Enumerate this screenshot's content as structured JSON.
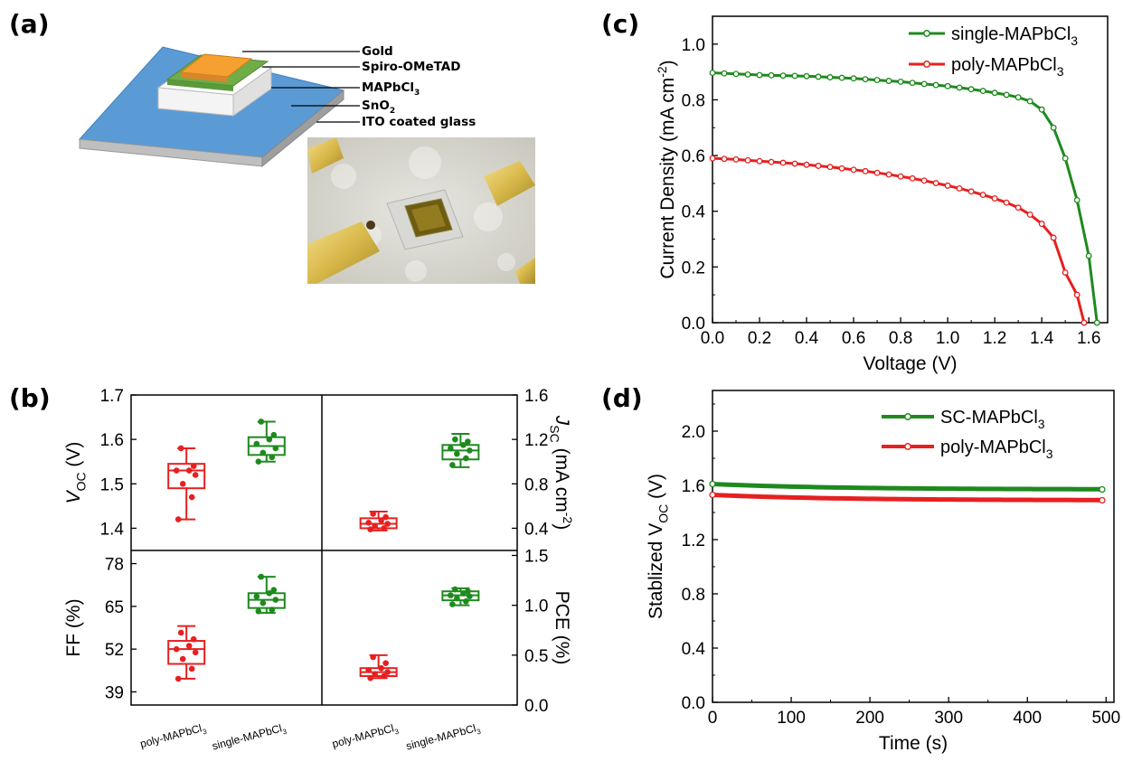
{
  "panels": {
    "a": "(a)",
    "b": "(b)",
    "c": "(c)",
    "d": "(d)"
  },
  "schematic": {
    "layers": [
      {
        "base": "Gold",
        "sub": ""
      },
      {
        "base": "Spiro-OMeTAD",
        "sub": ""
      },
      {
        "base": "MAPbCl",
        "sub": "3"
      },
      {
        "base": "SnO",
        "sub": "2"
      },
      {
        "base": "ITO coated glass",
        "sub": ""
      }
    ],
    "colors": {
      "glass": "#5b9bd5",
      "ito": "#bfbfbf",
      "sno2": "#ffffff",
      "perovskite": "#ffffff",
      "spiro": "#70ad47",
      "gold": "#ed7d31"
    }
  },
  "photo": {
    "description_icon": "device-photo"
  },
  "chart_data": [
    {
      "id": "c",
      "type": "line",
      "xlabel": "Voltage (V)",
      "ylabel": {
        "base": "Current Density (mA cm",
        "sup": "-2",
        "end": ")"
      },
      "xlim": [
        0,
        1.68
      ],
      "ylim": [
        0,
        1.1
      ],
      "xticks": [
        "0.0",
        "0.2",
        "0.4",
        "0.6",
        "0.8",
        "1.0",
        "1.2",
        "1.4",
        "1.6"
      ],
      "yticks": [
        "0.0",
        "0.2",
        "0.4",
        "0.6",
        "0.8",
        "1.0"
      ],
      "legend_position": "top-right",
      "series": [
        {
          "name": {
            "base": "single-MAPbCl",
            "sub": "3"
          },
          "color": "#1e8a1e",
          "x": [
            0,
            0.05,
            0.1,
            0.15,
            0.2,
            0.25,
            0.3,
            0.35,
            0.4,
            0.45,
            0.5,
            0.55,
            0.6,
            0.65,
            0.7,
            0.75,
            0.8,
            0.85,
            0.9,
            0.95,
            1.0,
            1.05,
            1.1,
            1.15,
            1.2,
            1.25,
            1.3,
            1.35,
            1.4,
            1.45,
            1.5,
            1.55,
            1.6,
            1.635
          ],
          "y": [
            0.897,
            0.895,
            0.893,
            0.891,
            0.889,
            0.888,
            0.887,
            0.886,
            0.885,
            0.883,
            0.881,
            0.879,
            0.877,
            0.874,
            0.871,
            0.868,
            0.865,
            0.861,
            0.857,
            0.853,
            0.849,
            0.844,
            0.838,
            0.832,
            0.825,
            0.818,
            0.809,
            0.795,
            0.765,
            0.7,
            0.59,
            0.44,
            0.24,
            0
          ]
        },
        {
          "name": {
            "base": "poly-MAPbCl",
            "sub": "3"
          },
          "color": "#e62020",
          "x": [
            0,
            0.05,
            0.1,
            0.15,
            0.2,
            0.25,
            0.3,
            0.35,
            0.4,
            0.45,
            0.5,
            0.55,
            0.6,
            0.65,
            0.7,
            0.75,
            0.8,
            0.85,
            0.9,
            0.95,
            1.0,
            1.05,
            1.1,
            1.15,
            1.2,
            1.25,
            1.3,
            1.35,
            1.4,
            1.45,
            1.5,
            1.55,
            1.58
          ],
          "y": [
            0.59,
            0.588,
            0.586,
            0.583,
            0.58,
            0.577,
            0.574,
            0.571,
            0.567,
            0.563,
            0.559,
            0.554,
            0.549,
            0.544,
            0.538,
            0.532,
            0.525,
            0.518,
            0.51,
            0.501,
            0.492,
            0.482,
            0.471,
            0.459,
            0.446,
            0.431,
            0.413,
            0.388,
            0.355,
            0.305,
            0.18,
            0.1,
            0
          ]
        }
      ]
    },
    {
      "id": "d",
      "type": "line",
      "xlabel": "Time (s)",
      "ylabel": {
        "base": "Stablized V",
        "sub": "OC",
        "end": " (V)"
      },
      "xlim": [
        0,
        510
      ],
      "ylim": [
        0,
        2.3
      ],
      "xticks": [
        "0",
        "100",
        "200",
        "300",
        "400",
        "500"
      ],
      "yticks": [
        "0.0",
        "0.4",
        "0.8",
        "1.2",
        "1.6",
        "2.0"
      ],
      "legend_position": "top-right",
      "series": [
        {
          "name": {
            "base": "SC-MAPbCl",
            "sub": "3"
          },
          "color": "#1e8a1e",
          "start": 1.61,
          "end": 1.57,
          "x_end": 495
        },
        {
          "name": {
            "base": "poly-MAPbCl",
            "sub": "3"
          },
          "color": "#e62020",
          "start": 1.53,
          "end": 1.49,
          "x_end": 495
        }
      ]
    },
    {
      "id": "b",
      "type": "box",
      "categories": [
        {
          "base": "poly-MAPbCl",
          "sub": "3"
        },
        {
          "base": "single-MAPbCl",
          "sub": "3"
        },
        {
          "base": "poly-MAPbCl",
          "sub": "3"
        },
        {
          "base": "single-MAPbCl",
          "sub": "3"
        }
      ],
      "colors": {
        "poly": "#e62020",
        "single": "#1e8a1e"
      },
      "subplots": [
        {
          "id": "voc",
          "ylabel": {
            "base": "V",
            "sub": "OC",
            "end": " (V)"
          },
          "axis": "left",
          "ylim": [
            1.35,
            1.7
          ],
          "yticks": [
            "1.4",
            "1.5",
            "1.6",
            "1.7"
          ],
          "boxes": [
            {
              "group": "poly",
              "min": 1.42,
              "q1": 1.49,
              "median": 1.53,
              "q3": 1.545,
              "max": 1.58,
              "points": [
                1.42,
                1.47,
                1.5,
                1.52,
                1.53,
                1.53,
                1.54,
                1.58
              ]
            },
            {
              "group": "single",
              "min": 1.55,
              "q1": 1.565,
              "median": 1.585,
              "q3": 1.605,
              "max": 1.64,
              "points": [
                1.55,
                1.56,
                1.57,
                1.58,
                1.59,
                1.6,
                1.61,
                1.64
              ]
            }
          ]
        },
        {
          "id": "jsc",
          "ylabel": {
            "base": "J",
            "sub": "SC",
            "mid": " (mA cm",
            "sup": "-2",
            "end": ")"
          },
          "axis": "right",
          "ylim": [
            0.2,
            1.6
          ],
          "yticks": [
            "0.4",
            "0.8",
            "1.2",
            "1.6"
          ],
          "boxes": [
            {
              "group": "poly",
              "min": 0.38,
              "q1": 0.4,
              "median": 0.44,
              "q3": 0.49,
              "max": 0.55,
              "points": [
                0.39,
                0.4,
                0.42,
                0.44,
                0.45,
                0.47,
                0.5,
                0.53
              ]
            },
            {
              "group": "single",
              "min": 0.95,
              "q1": 1.02,
              "median": 1.1,
              "q3": 1.15,
              "max": 1.25,
              "points": [
                0.97,
                1.03,
                1.07,
                1.1,
                1.12,
                1.15,
                1.18,
                1.2
              ]
            }
          ]
        },
        {
          "id": "ff",
          "ylabel": {
            "base": "FF (%)"
          },
          "axis": "left",
          "ylim": [
            35,
            82
          ],
          "yticks": [
            "39",
            "52",
            "65",
            "78"
          ],
          "boxes": [
            {
              "group": "poly",
              "min": 43,
              "q1": 47.5,
              "median": 52,
              "q3": 54.5,
              "max": 59,
              "points": [
                43,
                46,
                49,
                51,
                52,
                53,
                55,
                57
              ]
            },
            {
              "group": "single",
              "min": 63,
              "q1": 64.5,
              "median": 67,
              "q3": 69,
              "max": 74,
              "points": [
                63.5,
                64,
                66,
                67,
                68,
                69,
                70,
                74
              ]
            }
          ]
        },
        {
          "id": "pce",
          "ylabel": {
            "base": "PCE (%)"
          },
          "axis": "right",
          "ylim": [
            0,
            1.55
          ],
          "yticks": [
            "0.0",
            "0.5",
            "1.0",
            "1.5"
          ],
          "boxes": [
            {
              "group": "poly",
              "min": 0.27,
              "q1": 0.29,
              "median": 0.33,
              "q3": 0.37,
              "max": 0.5,
              "points": [
                0.27,
                0.29,
                0.31,
                0.33,
                0.35,
                0.37,
                0.42,
                0.48
              ]
            },
            {
              "group": "single",
              "min": 1.0,
              "q1": 1.05,
              "median": 1.1,
              "q3": 1.14,
              "max": 1.17,
              "points": [
                1.01,
                1.04,
                1.07,
                1.09,
                1.1,
                1.12,
                1.14,
                1.16
              ]
            }
          ]
        }
      ]
    }
  ]
}
